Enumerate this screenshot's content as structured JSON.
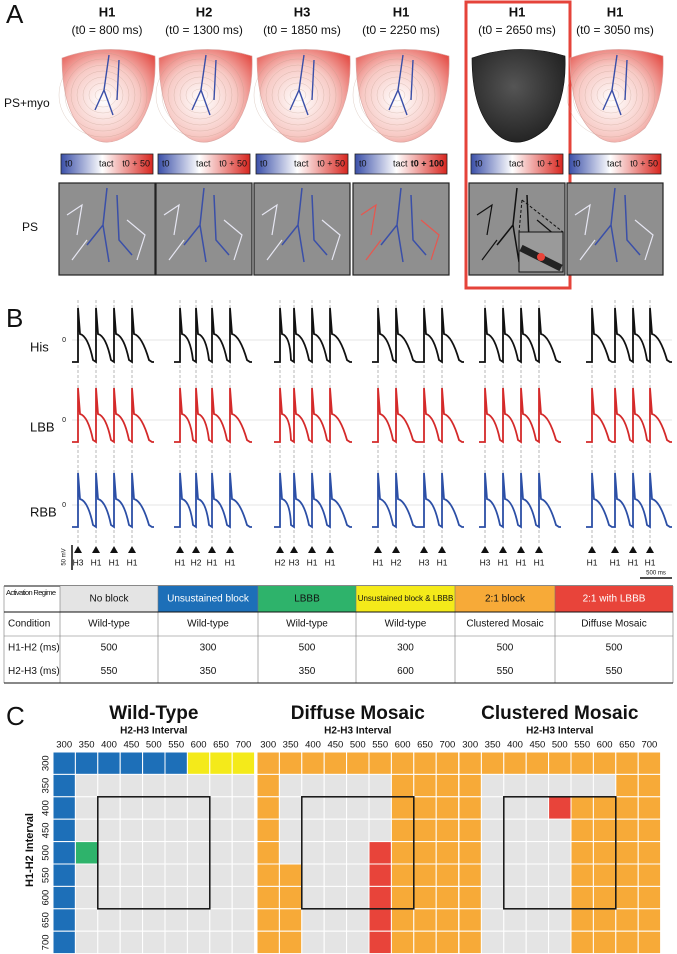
{
  "panel_a": {
    "label": "A",
    "row_labels": [
      "PS+myo",
      "PS"
    ],
    "columns": [
      {
        "stimulus": "H1",
        "time": "(t0 = 800 ms)",
        "colorbar": [
          "t0",
          "tact",
          "t0 + 50"
        ]
      },
      {
        "stimulus": "H2",
        "time": "(t0 = 1300 ms)",
        "colorbar": [
          "t0",
          "tact",
          "t0 + 50"
        ]
      },
      {
        "stimulus": "H3",
        "time": "(t0 = 1850 ms)",
        "colorbar": [
          "t0",
          "tact",
          "t0 + 50"
        ]
      },
      {
        "stimulus": "H1",
        "time": "(t0 = 2250 ms)",
        "colorbar": [
          "t0",
          "tact",
          "t0 + 100"
        ]
      },
      {
        "stimulus": "H1",
        "time": "(t0 = 2650 ms)",
        "colorbar": [
          "t0",
          "tact",
          "t0 + 1"
        ]
      },
      {
        "stimulus": "H1",
        "time": "(t0 = 3050 ms)",
        "colorbar": [
          "t0",
          "tact",
          "t0 + 50"
        ]
      }
    ]
  },
  "panel_b": {
    "label": "B",
    "traces": [
      "His",
      "LBB",
      "RBB"
    ],
    "zero": "0",
    "scale_v": "50 mV",
    "scale_t": "500 ms",
    "stimuli": [
      [
        "H3",
        "H1",
        "H1",
        "H1"
      ],
      [
        "H1",
        "H2",
        "H1",
        "H1"
      ],
      [
        "H2",
        "H3",
        "H1",
        "H1"
      ],
      [
        "H1",
        "H2",
        "H3",
        "H1"
      ],
      [
        "H3",
        "H1",
        "H1",
        "H1"
      ],
      [
        "H1",
        "H1",
        "H1",
        "H1"
      ]
    ]
  },
  "table": {
    "header": [
      "Activation Regime",
      "No block",
      "Unsustained block",
      "LBBB",
      "Unsustained block & LBBB",
      "2:1 block",
      "2:1 with LBBB"
    ],
    "colors": [
      "#e4e4e4",
      "#1d6fb8",
      "#2eb36b",
      "#f4ea1a",
      "#f7aa38",
      "#e8443a"
    ],
    "rows": [
      [
        "Condition",
        "Wild-type",
        "Wild-type",
        "Wild-type",
        "Wild-type",
        "Clustered Mosaic",
        "Diffuse Mosaic"
      ],
      [
        "H1-H2 (ms)",
        "500",
        "300",
        "500",
        "300",
        "500",
        "500"
      ],
      [
        "H2-H3 (ms)",
        "550",
        "350",
        "350",
        "600",
        "550",
        "550"
      ]
    ]
  },
  "panel_c": {
    "label": "C",
    "x_label": "H2-H3 Interval",
    "y_label": "H1-H2 Interval",
    "ticks": [
      300,
      350,
      400,
      450,
      500,
      550,
      600,
      650,
      700
    ],
    "maps": [
      {
        "title": "Wild-Type",
        "grid": [
          [
            1,
            1,
            1,
            1,
            1,
            1,
            3,
            3,
            3
          ],
          [
            1,
            0,
            0,
            0,
            0,
            0,
            0,
            0,
            0
          ],
          [
            1,
            0,
            0,
            0,
            0,
            0,
            0,
            0,
            0
          ],
          [
            1,
            0,
            0,
            0,
            0,
            0,
            0,
            0,
            0
          ],
          [
            1,
            2,
            0,
            0,
            0,
            0,
            0,
            0,
            0
          ],
          [
            1,
            0,
            0,
            0,
            0,
            0,
            0,
            0,
            0
          ],
          [
            1,
            0,
            0,
            0,
            0,
            0,
            0,
            0,
            0
          ],
          [
            1,
            0,
            0,
            0,
            0,
            0,
            0,
            0,
            0
          ],
          [
            1,
            0,
            0,
            0,
            0,
            0,
            0,
            0,
            0
          ]
        ]
      },
      {
        "title": "Diffuse Mosaic",
        "grid": [
          [
            4,
            4,
            4,
            4,
            4,
            4,
            4,
            4,
            4
          ],
          [
            4,
            0,
            0,
            0,
            0,
            0,
            4,
            4,
            4
          ],
          [
            4,
            0,
            0,
            0,
            0,
            0,
            4,
            4,
            4
          ],
          [
            4,
            0,
            0,
            0,
            0,
            0,
            4,
            4,
            4
          ],
          [
            4,
            0,
            0,
            0,
            0,
            5,
            4,
            4,
            4
          ],
          [
            4,
            4,
            0,
            0,
            0,
            5,
            4,
            4,
            4
          ],
          [
            4,
            4,
            0,
            0,
            0,
            5,
            4,
            4,
            4
          ],
          [
            4,
            4,
            0,
            0,
            0,
            5,
            4,
            4,
            4
          ],
          [
            4,
            4,
            0,
            0,
            0,
            5,
            4,
            4,
            4
          ]
        ]
      },
      {
        "title": "Clustered Mosaic",
        "grid": [
          [
            4,
            4,
            4,
            4,
            4,
            4,
            4,
            4,
            4
          ],
          [
            4,
            0,
            0,
            0,
            0,
            0,
            0,
            4,
            4
          ],
          [
            4,
            0,
            0,
            0,
            5,
            4,
            4,
            4,
            4
          ],
          [
            4,
            0,
            0,
            0,
            0,
            4,
            4,
            4,
            4
          ],
          [
            4,
            0,
            0,
            0,
            0,
            4,
            4,
            4,
            4
          ],
          [
            4,
            0,
            0,
            0,
            0,
            4,
            4,
            4,
            4
          ],
          [
            4,
            0,
            0,
            0,
            0,
            4,
            4,
            4,
            4
          ],
          [
            4,
            0,
            0,
            0,
            0,
            4,
            4,
            4,
            4
          ],
          [
            4,
            0,
            0,
            0,
            0,
            4,
            4,
            4,
            4
          ]
        ]
      }
    ]
  }
}
